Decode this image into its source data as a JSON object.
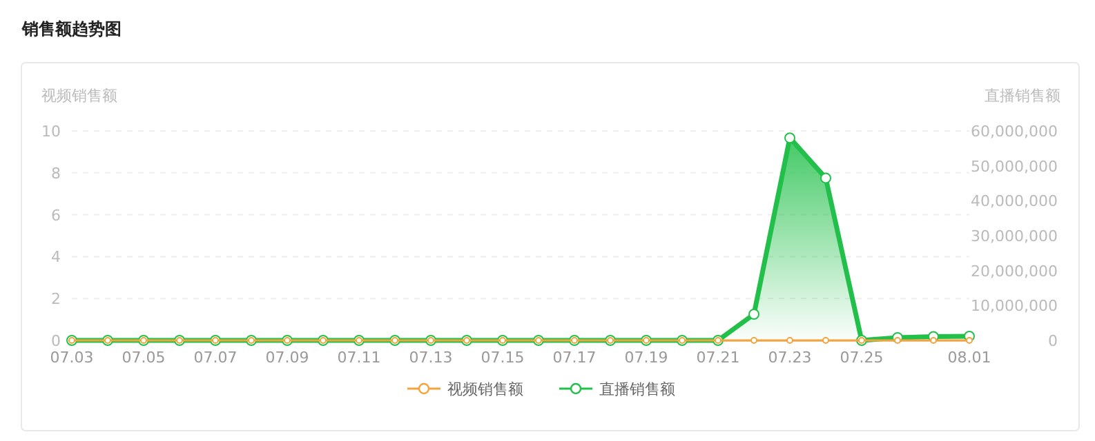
{
  "chart_data": {
    "type": "line",
    "title": "销售额趋势图",
    "ylabel": "视频销售额",
    "y2label": "直播销售额",
    "categories": [
      "07.03",
      null,
      "07.05",
      null,
      "07.07",
      null,
      "07.09",
      null,
      "07.11",
      null,
      "07.13",
      null,
      "07.15",
      null,
      "07.17",
      null,
      "07.19",
      null,
      "07.21",
      null,
      "07.23",
      null,
      "07.25",
      null,
      null,
      "08.01"
    ],
    "series": [
      {
        "name": "视频销售额",
        "color": "#f5a33c",
        "axis": "y",
        "values": [
          0,
          0,
          0,
          0,
          0,
          0,
          0,
          0,
          0,
          0,
          0,
          0,
          0,
          0,
          0,
          0,
          0,
          0,
          0,
          0,
          0,
          0,
          0,
          0,
          0,
          0
        ]
      },
      {
        "name": "直播销售额",
        "color": "#22c04a",
        "axis": "y2",
        "type": "area",
        "values": [
          0,
          0,
          0,
          0,
          0,
          0,
          0,
          0,
          0,
          0,
          0,
          0,
          0,
          0,
          0,
          0,
          0,
          0,
          0,
          7500000,
          58000000,
          46500000,
          0,
          800000,
          1100000,
          1200000
        ]
      }
    ],
    "ylim": [
      0,
      10
    ],
    "yticks": [
      0,
      2,
      4,
      6,
      8,
      10
    ],
    "y2lim": [
      0,
      60000000
    ],
    "y2ticks": [
      0,
      {
        "value": 10000000,
        "label": "10,000,000"
      },
      {
        "value": 20000000,
        "label": "20,000,000"
      },
      {
        "value": 30000000,
        "label": "30,000,000"
      },
      {
        "value": 40000000,
        "label": "40,000,000"
      },
      {
        "value": 50000000,
        "label": "50,000,000"
      },
      {
        "value": 60000000,
        "label": "60,000,000"
      }
    ],
    "grid": "y",
    "legend": "bottom",
    "marker": "circle"
  }
}
